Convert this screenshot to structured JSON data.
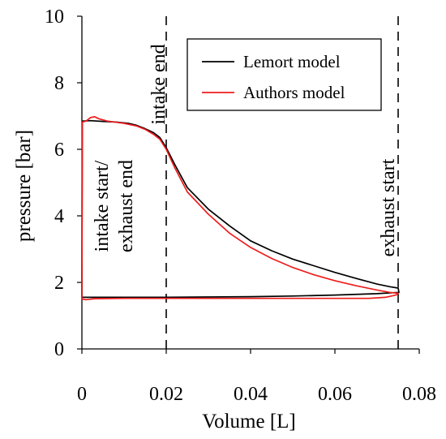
{
  "chart_data": {
    "type": "line",
    "xlabel": "Volume [L]",
    "ylabel": "pressure [bar]",
    "xlim": [
      0,
      0.08
    ],
    "ylim": [
      0,
      10
    ],
    "x_ticks": [
      "0",
      "0.02",
      "0.04",
      "0.06",
      "0.08"
    ],
    "y_ticks": [
      "0",
      "2",
      "4",
      "6",
      "8",
      "10"
    ],
    "x_tick_values": [
      0,
      0.02,
      0.04,
      0.06,
      0.08
    ],
    "y_tick_values": [
      0,
      2,
      4,
      6,
      8,
      10
    ],
    "grid": false,
    "legend_position": "top-right",
    "vlines": [
      {
        "x": 0.02,
        "style": "dashed",
        "color": "#000000"
      },
      {
        "x": 0.075,
        "style": "dashed",
        "color": "#000000"
      }
    ],
    "annotations": [
      {
        "lines": [
          "intake start/",
          "exhaust end"
        ],
        "x": 0.0,
        "rotation": -90
      },
      {
        "lines": [
          "intake end"
        ],
        "x": 0.02,
        "rotation": -90
      },
      {
        "lines": [
          "exhaust start"
        ],
        "x": 0.075,
        "rotation": -90
      }
    ],
    "series": [
      {
        "name": "Lemort model",
        "color": "#000000",
        "points": [
          [
            0.0,
            1.55
          ],
          [
            0.0001,
            6.85
          ],
          [
            0.002,
            6.86
          ],
          [
            0.005,
            6.84
          ],
          [
            0.008,
            6.82
          ],
          [
            0.011,
            6.78
          ],
          [
            0.013,
            6.72
          ],
          [
            0.015,
            6.62
          ],
          [
            0.017,
            6.5
          ],
          [
            0.0185,
            6.35
          ],
          [
            0.02,
            6.05
          ],
          [
            0.022,
            5.55
          ],
          [
            0.025,
            4.85
          ],
          [
            0.03,
            4.2
          ],
          [
            0.035,
            3.7
          ],
          [
            0.04,
            3.25
          ],
          [
            0.045,
            2.95
          ],
          [
            0.05,
            2.7
          ],
          [
            0.055,
            2.5
          ],
          [
            0.06,
            2.3
          ],
          [
            0.065,
            2.12
          ],
          [
            0.07,
            1.95
          ],
          [
            0.073,
            1.87
          ],
          [
            0.075,
            1.83
          ],
          [
            0.0752,
            1.7
          ],
          [
            0.07,
            1.66
          ],
          [
            0.06,
            1.62
          ],
          [
            0.05,
            1.59
          ],
          [
            0.04,
            1.57
          ],
          [
            0.03,
            1.56
          ],
          [
            0.02,
            1.55
          ],
          [
            0.01,
            1.55
          ],
          [
            0.001,
            1.55
          ],
          [
            0.0,
            1.55
          ]
        ]
      },
      {
        "name": "Authors model",
        "color": "#ee1c1c",
        "points": [
          [
            0.0,
            1.5
          ],
          [
            0.0001,
            6.82
          ],
          [
            0.001,
            6.85
          ],
          [
            0.002,
            6.95
          ],
          [
            0.003,
            6.98
          ],
          [
            0.004,
            6.92
          ],
          [
            0.006,
            6.85
          ],
          [
            0.01,
            6.78
          ],
          [
            0.013,
            6.7
          ],
          [
            0.015,
            6.6
          ],
          [
            0.017,
            6.45
          ],
          [
            0.0185,
            6.3
          ],
          [
            0.02,
            6.0
          ],
          [
            0.022,
            5.45
          ],
          [
            0.025,
            4.72
          ],
          [
            0.03,
            4.05
          ],
          [
            0.035,
            3.48
          ],
          [
            0.04,
            3.05
          ],
          [
            0.045,
            2.72
          ],
          [
            0.05,
            2.45
          ],
          [
            0.055,
            2.23
          ],
          [
            0.06,
            2.05
          ],
          [
            0.065,
            1.9
          ],
          [
            0.07,
            1.77
          ],
          [
            0.073,
            1.7
          ],
          [
            0.075,
            1.67
          ],
          [
            0.0745,
            1.62
          ],
          [
            0.072,
            1.55
          ],
          [
            0.068,
            1.52
          ],
          [
            0.06,
            1.52
          ],
          [
            0.05,
            1.52
          ],
          [
            0.04,
            1.52
          ],
          [
            0.03,
            1.52
          ],
          [
            0.02,
            1.52
          ],
          [
            0.01,
            1.52
          ],
          [
            0.003,
            1.51
          ],
          [
            0.001,
            1.48
          ],
          [
            0.0,
            1.5
          ]
        ]
      }
    ]
  }
}
